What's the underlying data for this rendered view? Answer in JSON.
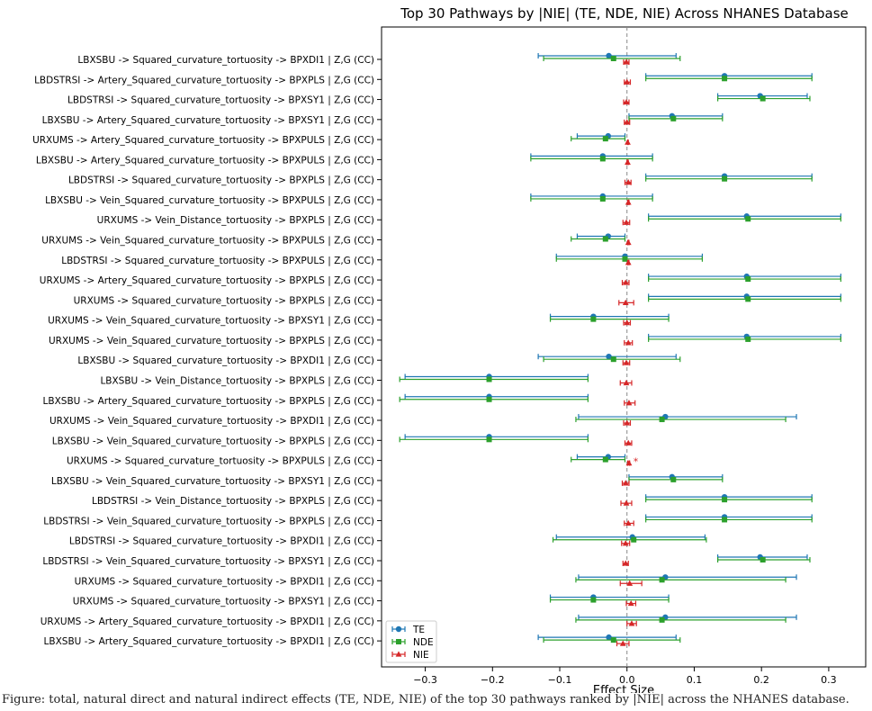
{
  "chart_data": {
    "type": "errorbar",
    "title": "Top 30 Pathways by |NIE| (TE, NDE, NIE) Across NHANES Database",
    "xlabel": "Effect Size",
    "ylabel": "",
    "xlim": [
      -0.365,
      0.355
    ],
    "xticks": [
      -0.3,
      -0.2,
      -0.1,
      0.0,
      0.1,
      0.2,
      0.3
    ],
    "xtick_labels": [
      "−0.3",
      "−0.2",
      "−0.1",
      "0.0",
      "0.1",
      "0.2",
      "0.3"
    ],
    "reference_line": 0,
    "grid": false,
    "legend_position": "lower-left",
    "series": [
      {
        "name": "TE",
        "color": "#1f77b4",
        "marker": "circle"
      },
      {
        "name": "NDE",
        "color": "#2ca02c",
        "marker": "square"
      },
      {
        "name": "NIE",
        "color": "#d62728",
        "marker": "triangle"
      }
    ],
    "rows": [
      {
        "label": "LBXSBU -> Squared_curvature_tortuosity -> BPXDI1 | Z,G (CC)",
        "te": [
          -0.027,
          -0.132,
          0.073
        ],
        "nde": [
          -0.02,
          -0.124,
          0.079
        ],
        "nie": [
          -0.001,
          -0.005,
          0.003
        ],
        "sig": ""
      },
      {
        "label": "LBDSTRSI -> Artery_Squared_curvature_tortuosity -> BPXPLS | Z,G (CC)",
        "te": [
          0.145,
          0.028,
          0.275
        ],
        "nde": [
          0.145,
          0.028,
          0.275
        ],
        "nie": [
          0.0,
          -0.004,
          0.005
        ],
        "sig": ""
      },
      {
        "label": "LBDSTRSI -> Squared_curvature_tortuosity -> BPXSY1 | Z,G (CC)",
        "te": [
          0.198,
          0.135,
          0.268
        ],
        "nde": [
          0.202,
          0.135,
          0.272
        ],
        "nie": [
          -0.001,
          -0.005,
          0.003
        ],
        "sig": ""
      },
      {
        "label": "LBXSBU -> Artery_Squared_curvature_tortuosity -> BPXSY1 | Z,G (CC)",
        "te": [
          0.067,
          0.003,
          0.142
        ],
        "nde": [
          0.069,
          0.003,
          0.142
        ],
        "nie": [
          0.0,
          -0.004,
          0.004
        ],
        "sig": ""
      },
      {
        "label": "URXUMS -> Artery_Squared_curvature_tortuosity -> BPXPULS | Z,G (CC)",
        "te": [
          -0.028,
          -0.074,
          -0.003
        ],
        "nde": [
          -0.032,
          -0.083,
          -0.003
        ],
        "nie": [
          0.001,
          0.001,
          0.002
        ],
        "sig": ""
      },
      {
        "label": "LBXSBU -> Artery_Squared_curvature_tortuosity -> BPXPULS | Z,G (CC)",
        "te": [
          -0.036,
          -0.143,
          0.038
        ],
        "nde": [
          -0.036,
          -0.143,
          0.038
        ],
        "nie": [
          0.001,
          0.0,
          0.002
        ],
        "sig": ""
      },
      {
        "label": "LBDSTRSI -> Squared_curvature_tortuosity -> BPXPLS | Z,G (CC)",
        "te": [
          0.145,
          0.028,
          0.275
        ],
        "nde": [
          0.145,
          0.028,
          0.275
        ],
        "nie": [
          0.002,
          -0.003,
          0.006
        ],
        "sig": ""
      },
      {
        "label": "LBXSBU -> Vein_Squared_curvature_tortuosity -> BPXPULS | Z,G (CC)",
        "te": [
          -0.036,
          -0.143,
          0.038
        ],
        "nde": [
          -0.036,
          -0.143,
          0.038
        ],
        "nie": [
          0.002,
          0.001,
          0.003
        ],
        "sig": ""
      },
      {
        "label": "URXUMS -> Vein_Distance_tortuosity -> BPXPLS | Z,G (CC)",
        "te": [
          0.178,
          0.032,
          0.318
        ],
        "nde": [
          0.18,
          0.032,
          0.318
        ],
        "nie": [
          -0.001,
          -0.006,
          0.004
        ],
        "sig": ""
      },
      {
        "label": "URXUMS -> Vein_Squared_curvature_tortuosity -> BPXPULS | Z,G (CC)",
        "te": [
          -0.028,
          -0.074,
          -0.003
        ],
        "nde": [
          -0.032,
          -0.083,
          -0.003
        ],
        "nie": [
          0.002,
          0.001,
          0.003
        ],
        "sig": ""
      },
      {
        "label": "LBDSTRSI -> Squared_curvature_tortuosity -> BPXPULS | Z,G (CC)",
        "te": [
          -0.003,
          -0.105,
          0.112
        ],
        "nde": [
          -0.003,
          -0.105,
          0.112
        ],
        "nie": [
          0.002,
          0.001,
          0.003
        ],
        "sig": ""
      },
      {
        "label": "URXUMS -> Artery_Squared_curvature_tortuosity -> BPXPLS | Z,G (CC)",
        "te": [
          0.178,
          0.032,
          0.318
        ],
        "nde": [
          0.18,
          0.032,
          0.318
        ],
        "nie": [
          -0.002,
          -0.007,
          0.003
        ],
        "sig": ""
      },
      {
        "label": "URXUMS -> Squared_curvature_tortuosity -> BPXPLS | Z,G (CC)",
        "te": [
          0.178,
          0.032,
          0.318
        ],
        "nde": [
          0.18,
          0.032,
          0.318
        ],
        "nie": [
          -0.002,
          -0.012,
          0.01
        ],
        "sig": ""
      },
      {
        "label": "URXUMS -> Vein_Squared_curvature_tortuosity -> BPXSY1 | Z,G (CC)",
        "te": [
          -0.05,
          -0.114,
          0.062
        ],
        "nde": [
          -0.05,
          -0.114,
          0.062
        ],
        "nie": [
          0.0,
          -0.005,
          0.005
        ],
        "sig": ""
      },
      {
        "label": "URXUMS -> Vein_Squared_curvature_tortuosity -> BPXPLS | Z,G (CC)",
        "te": [
          0.178,
          0.032,
          0.318
        ],
        "nde": [
          0.18,
          0.032,
          0.318
        ],
        "nie": [
          0.002,
          -0.004,
          0.008
        ],
        "sig": ""
      },
      {
        "label": "LBXSBU -> Squared_curvature_tortuosity -> BPXDI1 | Z,G (CC)",
        "te": [
          -0.027,
          -0.132,
          0.073
        ],
        "nde": [
          -0.02,
          -0.124,
          0.079
        ],
        "nie": [
          -0.001,
          -0.006,
          0.004
        ],
        "sig": ""
      },
      {
        "label": "LBXSBU -> Vein_Distance_tortuosity -> BPXPLS | Z,G (CC)",
        "te": [
          -0.205,
          -0.33,
          -0.058
        ],
        "nde": [
          -0.205,
          -0.338,
          -0.058
        ],
        "nie": [
          -0.001,
          -0.01,
          0.007
        ],
        "sig": ""
      },
      {
        "label": "LBXSBU -> Artery_Squared_curvature_tortuosity -> BPXPLS | Z,G (CC)",
        "te": [
          -0.205,
          -0.33,
          -0.058
        ],
        "nde": [
          -0.205,
          -0.338,
          -0.058
        ],
        "nie": [
          0.003,
          -0.004,
          0.012
        ],
        "sig": ""
      },
      {
        "label": "URXUMS -> Vein_Squared_curvature_tortuosity -> BPXDI1 | Z,G (CC)",
        "te": [
          0.057,
          -0.072,
          0.252
        ],
        "nde": [
          0.052,
          -0.076,
          0.236
        ],
        "nie": [
          0.0,
          -0.005,
          0.005
        ],
        "sig": ""
      },
      {
        "label": "LBXSBU -> Vein_Squared_curvature_tortuosity -> BPXPLS | Z,G (CC)",
        "te": [
          -0.205,
          -0.33,
          -0.058
        ],
        "nde": [
          -0.205,
          -0.338,
          -0.058
        ],
        "nie": [
          0.002,
          -0.003,
          0.007
        ],
        "sig": ""
      },
      {
        "label": "URXUMS -> Squared_curvature_tortuosity -> BPXPULS | Z,G (CC)",
        "te": [
          -0.028,
          -0.074,
          -0.003
        ],
        "nde": [
          -0.032,
          -0.083,
          -0.003
        ],
        "nie": [
          0.003,
          0.001,
          0.004
        ],
        "sig": "*"
      },
      {
        "label": "LBXSBU -> Vein_Squared_curvature_tortuosity -> BPXSY1 | Z,G (CC)",
        "te": [
          0.067,
          0.003,
          0.142
        ],
        "nde": [
          0.069,
          0.003,
          0.142
        ],
        "nie": [
          -0.002,
          -0.007,
          0.003
        ],
        "sig": ""
      },
      {
        "label": "LBDSTRSI -> Vein_Distance_tortuosity -> BPXPLS | Z,G (CC)",
        "te": [
          0.145,
          0.028,
          0.275
        ],
        "nde": [
          0.145,
          0.028,
          0.275
        ],
        "nie": [
          -0.001,
          -0.009,
          0.007
        ],
        "sig": ""
      },
      {
        "label": "LBDSTRSI -> Vein_Squared_curvature_tortuosity -> BPXPLS | Z,G (CC)",
        "te": [
          0.145,
          0.028,
          0.275
        ],
        "nde": [
          0.145,
          0.028,
          0.275
        ],
        "nie": [
          0.002,
          -0.004,
          0.01
        ],
        "sig": ""
      },
      {
        "label": "LBDSTRSI -> Squared_curvature_tortuosity -> BPXDI1 | Z,G (CC)",
        "te": [
          0.008,
          -0.105,
          0.116
        ],
        "nde": [
          0.01,
          -0.11,
          0.118
        ],
        "nie": [
          -0.002,
          -0.008,
          0.004
        ],
        "sig": ""
      },
      {
        "label": "LBDSTRSI -> Vein_Squared_curvature_tortuosity -> BPXSY1 | Z,G (CC)",
        "te": [
          0.198,
          0.135,
          0.268
        ],
        "nde": [
          0.202,
          0.135,
          0.272
        ],
        "nie": [
          -0.002,
          -0.006,
          0.002
        ],
        "sig": ""
      },
      {
        "label": "URXUMS -> Squared_curvature_tortuosity -> BPXDI1 | Z,G (CC)",
        "te": [
          0.057,
          -0.072,
          0.252
        ],
        "nde": [
          0.052,
          -0.076,
          0.236
        ],
        "nie": [
          0.004,
          -0.01,
          0.022
        ],
        "sig": ""
      },
      {
        "label": "URXUMS -> Squared_curvature_tortuosity -> BPXSY1 | Z,G (CC)",
        "te": [
          -0.05,
          -0.114,
          0.062
        ],
        "nde": [
          -0.05,
          -0.114,
          0.062
        ],
        "nie": [
          0.006,
          -0.001,
          0.013
        ],
        "sig": ""
      },
      {
        "label": "URXUMS -> Artery_Squared_curvature_tortuosity -> BPXDI1 | Z,G (CC)",
        "te": [
          0.057,
          -0.072,
          0.252
        ],
        "nde": [
          0.052,
          -0.076,
          0.236
        ],
        "nie": [
          0.007,
          0.0,
          0.014
        ],
        "sig": ""
      },
      {
        "label": "LBXSBU -> Artery_Squared_curvature_tortuosity -> BPXDI1 | Z,G (CC)",
        "te": [
          -0.027,
          -0.132,
          0.073
        ],
        "nde": [
          -0.02,
          -0.124,
          0.079
        ],
        "nie": [
          -0.006,
          -0.015,
          0.003
        ],
        "sig": ""
      }
    ]
  },
  "caption": "Figure: total, natural direct and natural indirect effects (TE, NDE, NIE) of the top 30 pathways ranked by |NIE| across the NHANES database."
}
